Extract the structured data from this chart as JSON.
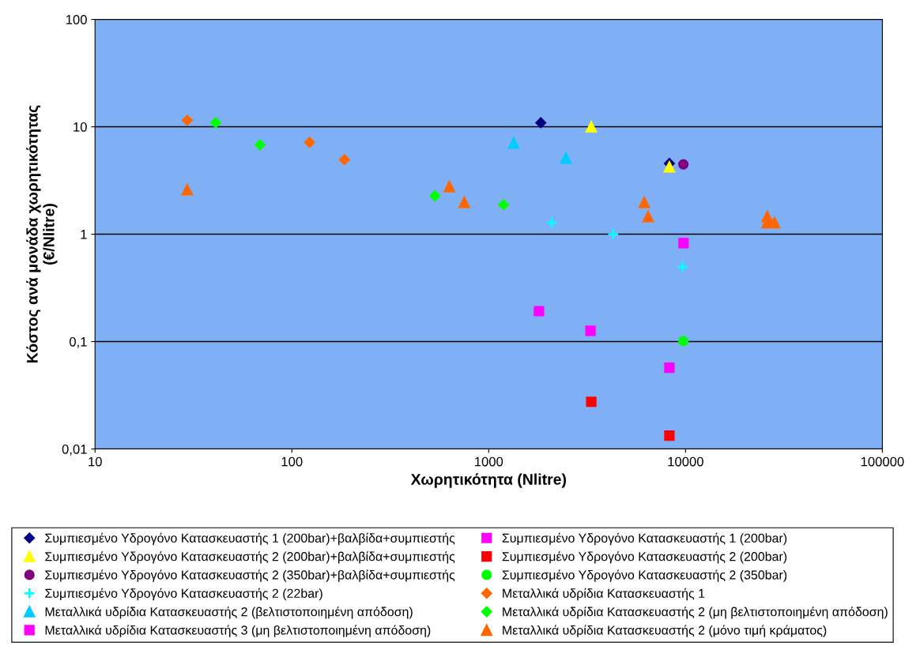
{
  "chart_data": {
    "type": "scatter",
    "xlabel": "Χωρητικότητα (Nlitre)",
    "ylabel": "Κόστος ανά μονάδα χωρητικότητας\n(€/Nlitre)",
    "log": "xy",
    "xlim": [
      10,
      100000
    ],
    "ylim": [
      0.01,
      100
    ],
    "xticks": [
      10,
      100,
      1000,
      10000,
      100000
    ],
    "yticks": [
      {
        "value": 0.01,
        "label": "0,01"
      },
      {
        "value": 0.1,
        "label": "0,1"
      },
      1,
      10,
      100
    ],
    "grid": "y",
    "legend": "bottom",
    "series": [
      {
        "name": "Συμπιεσμένο Υδρογόνο Κατασκευαστής 1 (200bar)+βαλβίδα+συμπιεστής",
        "color": "#000080",
        "marker": "diamond",
        "x": [
          1840,
          8280
        ],
        "values": [
          10.9,
          4.56
        ]
      },
      {
        "name": "Συμπιεσμένο Υδρογόνο Κατασκευαστής 1 (200bar)",
        "color": "#ff00ff",
        "marker": "square",
        "x": [
          1800,
          3290,
          8280
        ],
        "values": [
          0.192,
          0.126,
          0.057
        ]
      },
      {
        "name": "Συμπιεσμένο Υδρογόνο Κατασκευαστής 2 (200bar)+βαλβίδα+συμπιεστής",
        "color": "#ffff00",
        "marker": "triangle",
        "x": [
          3320,
          8280
        ],
        "values": [
          10,
          4.24
        ]
      },
      {
        "name": "Συμπιεσμένο Υδρογόνο Κατασκευαστής 2 (200bar)",
        "color": "#ff0000",
        "marker": "square",
        "x": [
          3320,
          8280
        ],
        "values": [
          0.0275,
          0.0133
        ]
      },
      {
        "name": "Συμπιεσμένο Υδρογόνο Κατασκευαστής 2 (350bar)+βαλβίδα+συμπιεστής",
        "color": "#800080",
        "marker": "circle",
        "x": [
          9750
        ],
        "values": [
          4.47
        ]
      },
      {
        "name": "Συμπιεσμένο Υδρογόνο Κατασκευαστής 2 (350bar)",
        "color": "#00ff00",
        "marker": "circle",
        "x": [
          9750
        ],
        "values": [
          0.101
        ]
      },
      {
        "name": "Συμπιεσμένο Υδρογόνο Κατασκευαστής 2 (22bar)",
        "color": "#00ffff",
        "marker": "cross",
        "x": [
          2090,
          4290,
          9640
        ],
        "values": [
          1.28,
          1.0,
          0.495
        ]
      },
      {
        "name": "Μεταλλικά υδρίδια Κατασκευαστής 1",
        "color": "#ff6600",
        "marker": "diamond",
        "x": [
          29.4,
          123,
          185
        ],
        "values": [
          11.5,
          7.16,
          4.94
        ]
      },
      {
        "name": "Μεταλλικά υδρίδια Κατασκευαστής 2 (βελτιστοποιημένη απόδοση)",
        "color": "#00ccff",
        "marker": "triangle",
        "x": [
          1340,
          2470
        ],
        "values": [
          7.05,
          5.1
        ]
      },
      {
        "name": "Μεταλλικά υδρίδια Κατασκευαστής 2 (μη βελτιστοποιημένη απόδοση)",
        "color": "#00ff00",
        "marker": "diamond",
        "x": [
          41,
          68.9,
          533,
          1190
        ],
        "values": [
          10.9,
          6.8,
          2.27,
          1.88
        ]
      },
      {
        "name": "Μεταλλικά υδρίδια Κατασκευαστής 3 (μη βελτιστοποιημένη απόδοση)",
        "color": "#ff00ff",
        "marker": "square",
        "x": [
          9770
        ],
        "values": [
          0.824
        ]
      },
      {
        "name": "Μεταλλικά υδρίδια Κατασκευαστής 2 (μόνο τιμή κράματος)",
        "color": "#ff6600",
        "marker": "triangle",
        "x": [
          29.4,
          631,
          751,
          6170,
          6460,
          26000,
          26000,
          28300
        ],
        "values": [
          2.6,
          2.78,
          1.98,
          1.98,
          1.46,
          1.46,
          1.28,
          1.28
        ]
      }
    ]
  }
}
